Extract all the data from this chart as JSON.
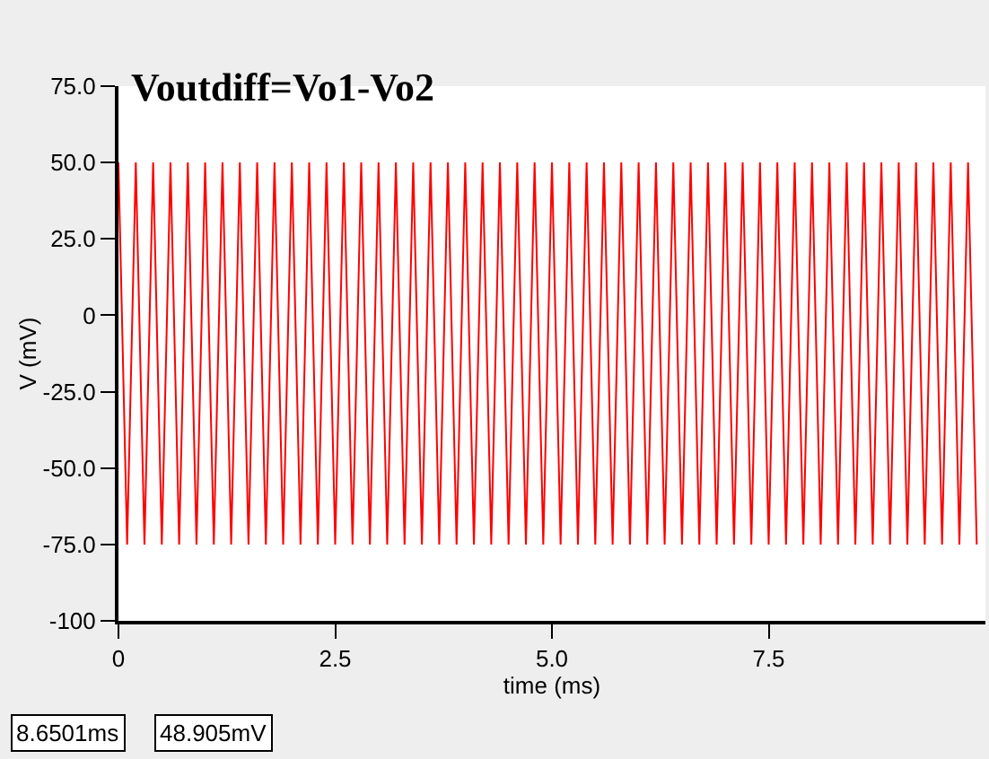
{
  "chart_data": {
    "type": "line",
    "title": "Voutdiff=Vo1-Vo2",
    "xlabel": "time (ms)",
    "ylabel": "V (mV)",
    "x": [
      0.0,
      0.1,
      0.2,
      0.3,
      0.4,
      0.5,
      0.6,
      0.7,
      0.8,
      0.9,
      1.0,
      1.1,
      1.2,
      1.3,
      1.4,
      1.5,
      1.6,
      1.7,
      1.8,
      1.9,
      2.0,
      2.1,
      2.2,
      2.3,
      2.4,
      2.5,
      2.6,
      2.7,
      2.8,
      2.9,
      3.0,
      3.1,
      3.2,
      3.3,
      3.4,
      3.5,
      3.6,
      3.7,
      3.8,
      3.9,
      4.0,
      4.1,
      4.2,
      4.3,
      4.4,
      4.5,
      4.6,
      4.7,
      4.8,
      4.9,
      5.0,
      5.1,
      5.2,
      5.3,
      5.4,
      5.5,
      5.6,
      5.7,
      5.8,
      5.9,
      6.0,
      6.1,
      6.2,
      6.3,
      6.4,
      6.5,
      6.6,
      6.7,
      6.8,
      6.9,
      7.0,
      7.1,
      7.2,
      7.3,
      7.4,
      7.5,
      7.6,
      7.7,
      7.8,
      7.9,
      8.0,
      8.1,
      8.2,
      8.3,
      8.4,
      8.5,
      8.6,
      8.7,
      8.8,
      8.9,
      9.0,
      9.1,
      9.2,
      9.3,
      9.4,
      9.5,
      9.6,
      9.7,
      9.8,
      9.9
    ],
    "series": [
      {
        "color": "#ff0000",
        "values": [
          50,
          -75,
          50,
          -75,
          50,
          -75,
          50,
          -75,
          50,
          -75,
          50,
          -75,
          50,
          -75,
          50,
          -75,
          50,
          -75,
          50,
          -75,
          50,
          -75,
          50,
          -75,
          50,
          -75,
          50,
          -75,
          50,
          -75,
          50,
          -75,
          50,
          -75,
          50,
          -75,
          50,
          -75,
          50,
          -75,
          50,
          -75,
          50,
          -75,
          50,
          -75,
          50,
          -75,
          50,
          -75,
          50,
          -75,
          50,
          -75,
          50,
          -75,
          50,
          -75,
          50,
          -75,
          50,
          -75,
          50,
          -75,
          50,
          -75,
          50,
          -75,
          50,
          -75,
          50,
          -75,
          50,
          -75,
          50,
          -75,
          50,
          -75,
          50,
          -75,
          50,
          -75,
          50,
          -75,
          50,
          -75,
          50,
          -75,
          50,
          -75,
          50,
          -75,
          50,
          -75,
          50,
          -75,
          50,
          -75,
          50,
          -75
        ]
      }
    ],
    "xlim": [
      0,
      10
    ],
    "ylim": [
      -100,
      75
    ],
    "xticks": [
      0,
      2.5,
      {
        "value": 5,
        "label": "5.0"
      },
      7.5
    ],
    "yticks": [
      {
        "value": 75,
        "label": "75.0"
      },
      {
        "value": 50,
        "label": "50.0"
      },
      {
        "value": 25,
        "label": "25.0"
      },
      0,
      {
        "value": -25,
        "label": "-25.0"
      },
      {
        "value": -50,
        "label": "-50.0"
      },
      {
        "value": -75,
        "label": "-75.0"
      },
      -100
    ],
    "annotations": [
      "8.6501ms",
      "48.905mV"
    ],
    "marker": "none",
    "line_style": "solid"
  }
}
